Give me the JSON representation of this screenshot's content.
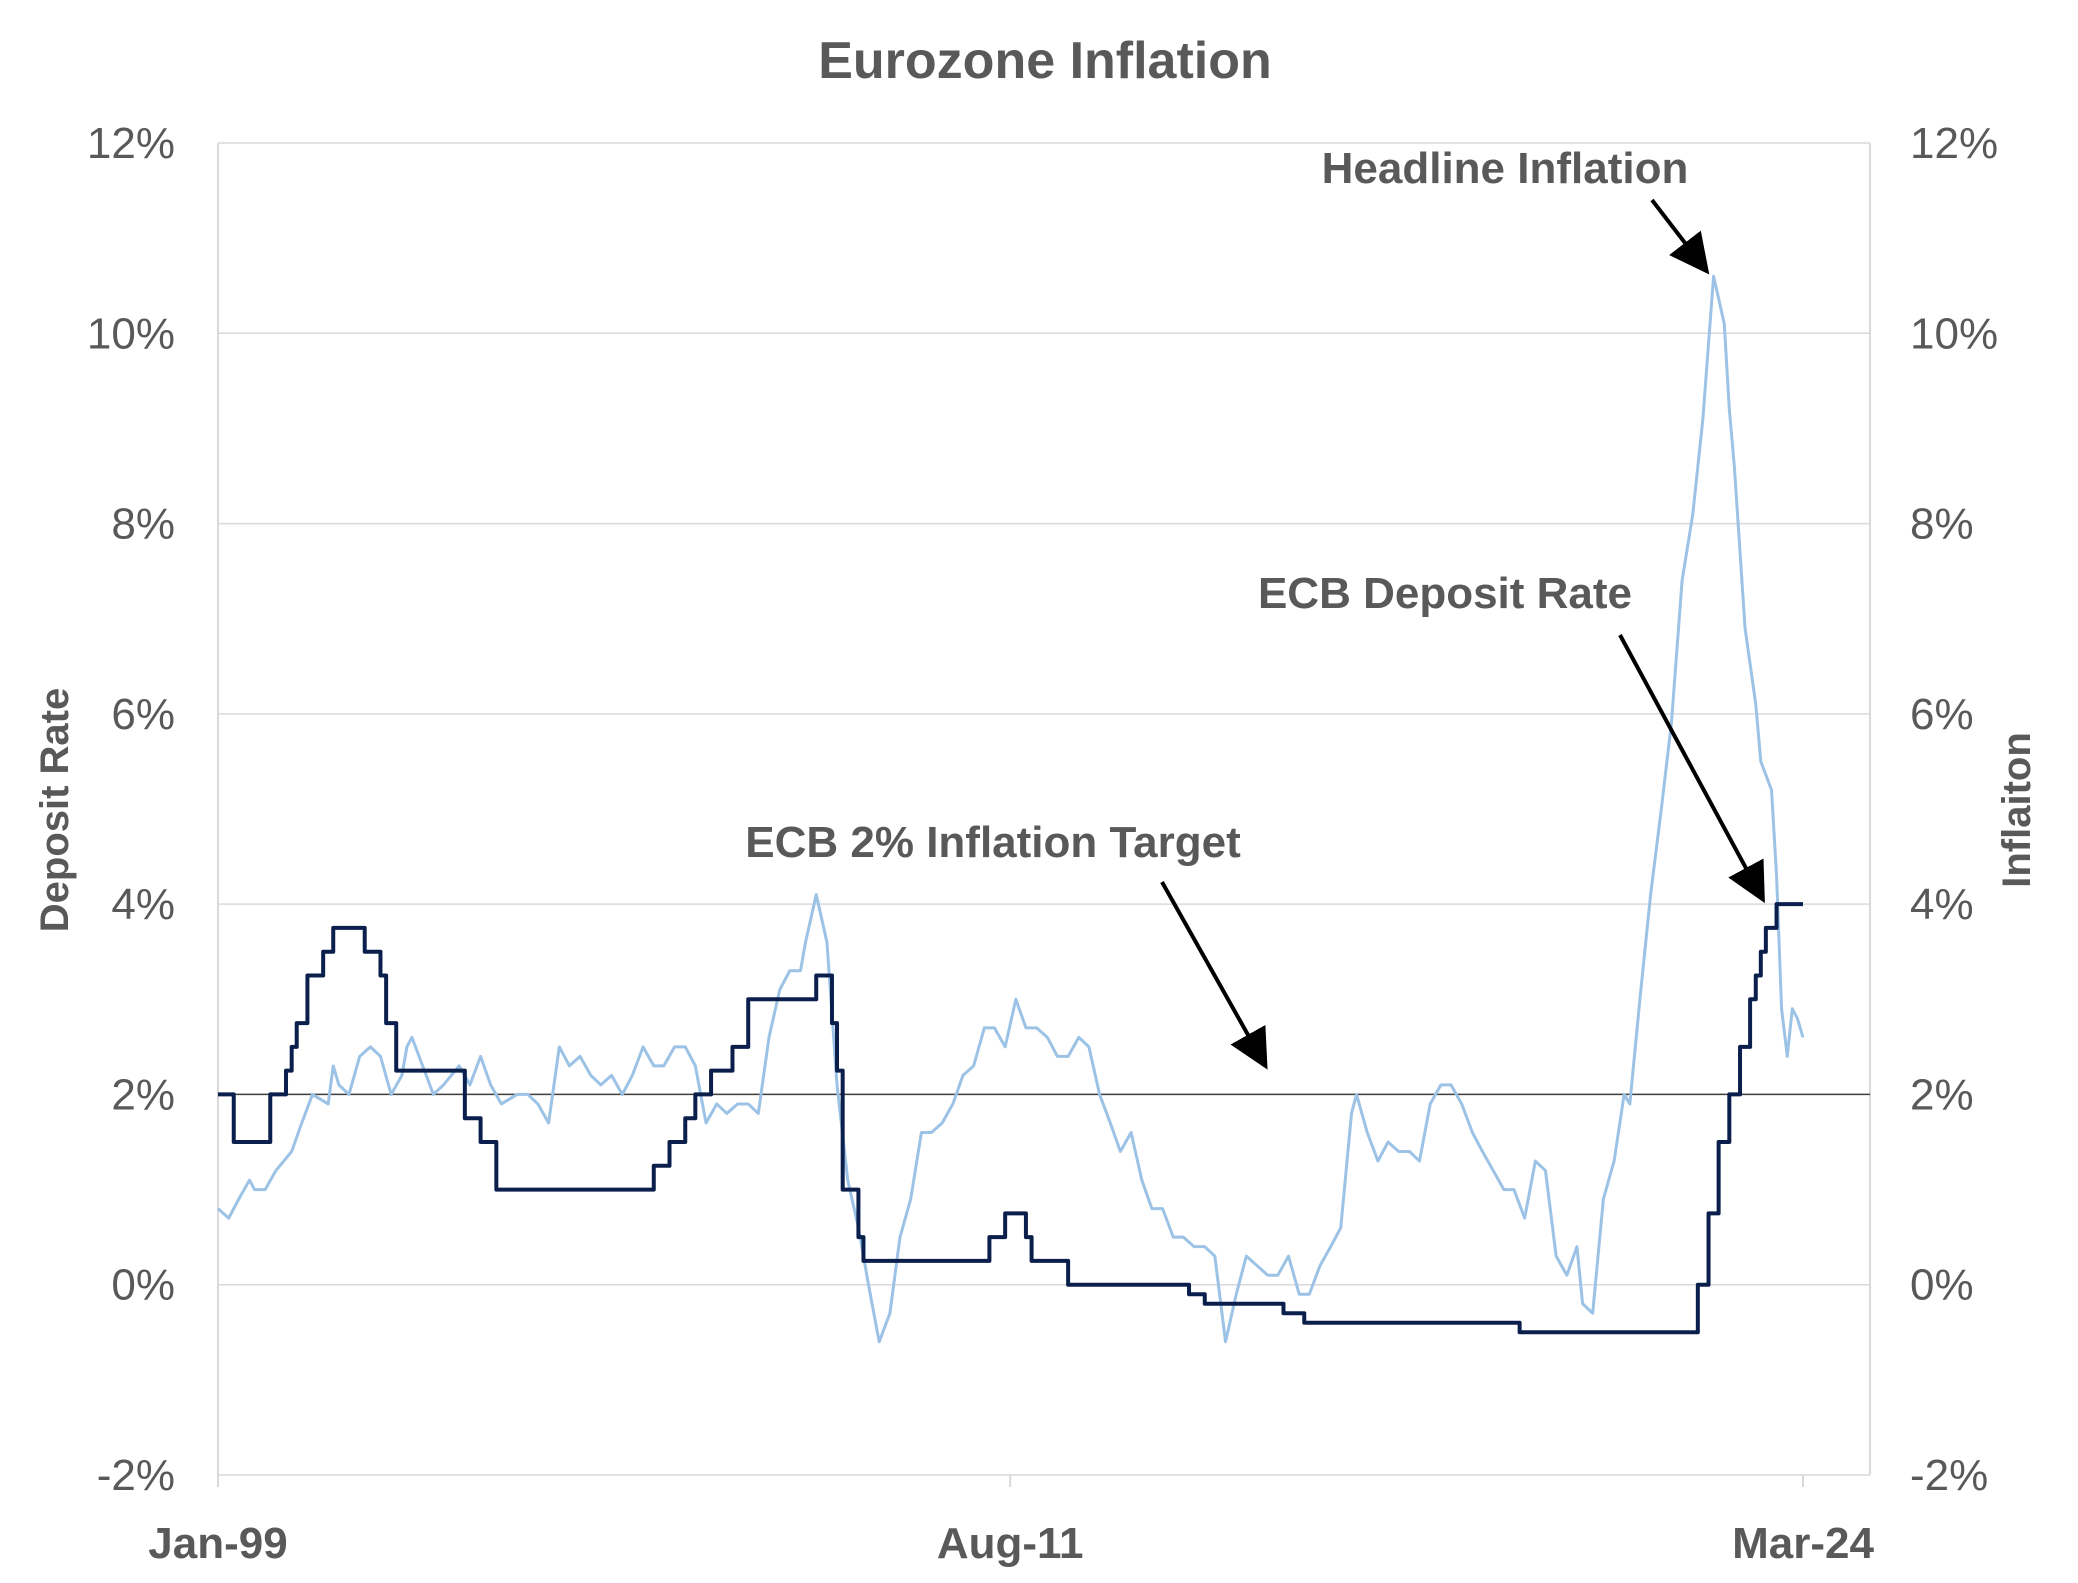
{
  "chart_data": {
    "type": "line",
    "title": "Eurozone Inflation",
    "ylabel": "Deposit  Rate",
    "y2label": "Inflaiton",
    "ylim": [
      -2,
      12
    ],
    "y2lim": [
      -2,
      12
    ],
    "yticks": [
      "-2%",
      "0%",
      "2%",
      "4%",
      "6%",
      "8%",
      "10%",
      "12%"
    ],
    "ytick_values": [
      -2,
      0,
      2,
      4,
      6,
      8,
      10,
      12
    ],
    "xlim": [
      1999.0,
      2024.0
    ],
    "xticks": [
      "Jan-99",
      "Aug-11",
      "Mar-24"
    ],
    "xtick_values": [
      1999.0,
      2011.58,
      2024.17
    ],
    "target_line": {
      "value": 2,
      "label": "ECB 2% Inflation Target"
    },
    "colors": {
      "deposit": "#0b1f4d",
      "inflation": "#9cc2e5",
      "target": "#404040",
      "grid": "#d9d9d9",
      "text": "#595959",
      "arrow": "#000000"
    },
    "annotations": [
      {
        "text": "Headline Inflation",
        "target": {
          "x": 2022.7,
          "y": 10.6
        }
      },
      {
        "text": "ECB Deposit Rate",
        "target": {
          "x": 2023.6,
          "y": 4.0
        }
      },
      {
        "text": "ECB 2% Inflation Target",
        "target": {
          "x": 2015.7,
          "y": 2.25
        }
      }
    ],
    "series": [
      {
        "name": "ECB Deposit Rate",
        "step": true,
        "points": [
          [
            1999.0,
            2.0
          ],
          [
            1999.25,
            1.5
          ],
          [
            1999.83,
            2.0
          ],
          [
            2000.08,
            2.25
          ],
          [
            2000.17,
            2.5
          ],
          [
            2000.25,
            2.75
          ],
          [
            2000.42,
            3.25
          ],
          [
            2000.67,
            3.5
          ],
          [
            2000.83,
            3.75
          ],
          [
            2001.33,
            3.5
          ],
          [
            2001.58,
            3.25
          ],
          [
            2001.67,
            2.75
          ],
          [
            2001.83,
            2.25
          ],
          [
            2002.92,
            1.75
          ],
          [
            2003.17,
            1.5
          ],
          [
            2003.42,
            1.0
          ],
          [
            2005.92,
            1.25
          ],
          [
            2006.17,
            1.5
          ],
          [
            2006.42,
            1.75
          ],
          [
            2006.58,
            2.0
          ],
          [
            2006.83,
            2.25
          ],
          [
            2007.17,
            2.5
          ],
          [
            2007.42,
            3.0
          ],
          [
            2008.5,
            3.25
          ],
          [
            2008.75,
            2.75
          ],
          [
            2008.83,
            2.25
          ],
          [
            2008.92,
            1.0
          ],
          [
            2009.0,
            1.0
          ],
          [
            2009.17,
            0.5
          ],
          [
            2009.25,
            0.25
          ],
          [
            2011.25,
            0.5
          ],
          [
            2011.5,
            0.75
          ],
          [
            2011.83,
            0.5
          ],
          [
            2011.92,
            0.25
          ],
          [
            2012.5,
            0.0
          ],
          [
            2014.42,
            -0.1
          ],
          [
            2014.67,
            -0.2
          ],
          [
            2015.92,
            -0.3
          ],
          [
            2016.25,
            -0.4
          ],
          [
            2019.67,
            -0.5
          ],
          [
            2022.5,
            0.0
          ],
          [
            2022.67,
            0.75
          ],
          [
            2022.83,
            1.5
          ],
          [
            2023.0,
            2.0
          ],
          [
            2023.17,
            2.5
          ],
          [
            2023.33,
            3.0
          ],
          [
            2023.42,
            3.25
          ],
          [
            2023.5,
            3.5
          ],
          [
            2023.58,
            3.75
          ],
          [
            2023.75,
            4.0
          ],
          [
            2024.17,
            4.0
          ]
        ]
      },
      {
        "name": "Headline Inflation",
        "step": false,
        "points": [
          [
            1999.0,
            0.8
          ],
          [
            1999.17,
            0.7
          ],
          [
            1999.33,
            0.9
          ],
          [
            1999.5,
            1.1
          ],
          [
            1999.58,
            1.0
          ],
          [
            1999.75,
            1.0
          ],
          [
            1999.92,
            1.2
          ],
          [
            2000.17,
            1.4
          ],
          [
            2000.33,
            1.7
          ],
          [
            2000.5,
            2.0
          ],
          [
            2000.75,
            1.9
          ],
          [
            2000.83,
            2.3
          ],
          [
            2000.92,
            2.1
          ],
          [
            2001.08,
            2.0
          ],
          [
            2001.25,
            2.4
          ],
          [
            2001.42,
            2.5
          ],
          [
            2001.58,
            2.4
          ],
          [
            2001.75,
            2.0
          ],
          [
            2001.92,
            2.2
          ],
          [
            2002.0,
            2.5
          ],
          [
            2002.08,
            2.6
          ],
          [
            2002.25,
            2.3
          ],
          [
            2002.42,
            2.0
          ],
          [
            2002.58,
            2.1
          ],
          [
            2002.83,
            2.3
          ],
          [
            2003.0,
            2.1
          ],
          [
            2003.17,
            2.4
          ],
          [
            2003.33,
            2.1
          ],
          [
            2003.5,
            1.9
          ],
          [
            2003.75,
            2.0
          ],
          [
            2003.92,
            2.0
          ],
          [
            2004.08,
            1.9
          ],
          [
            2004.25,
            1.7
          ],
          [
            2004.42,
            2.5
          ],
          [
            2004.58,
            2.3
          ],
          [
            2004.75,
            2.4
          ],
          [
            2004.92,
            2.2
          ],
          [
            2005.08,
            2.1
          ],
          [
            2005.25,
            2.2
          ],
          [
            2005.42,
            2.0
          ],
          [
            2005.58,
            2.2
          ],
          [
            2005.75,
            2.5
          ],
          [
            2005.92,
            2.3
          ],
          [
            2006.08,
            2.3
          ],
          [
            2006.25,
            2.5
          ],
          [
            2006.42,
            2.5
          ],
          [
            2006.58,
            2.3
          ],
          [
            2006.75,
            1.7
          ],
          [
            2006.92,
            1.9
          ],
          [
            2007.08,
            1.8
          ],
          [
            2007.25,
            1.9
          ],
          [
            2007.42,
            1.9
          ],
          [
            2007.58,
            1.8
          ],
          [
            2007.75,
            2.6
          ],
          [
            2007.92,
            3.1
          ],
          [
            2008.08,
            3.3
          ],
          [
            2008.25,
            3.3
          ],
          [
            2008.33,
            3.6
          ],
          [
            2008.5,
            4.1
          ],
          [
            2008.67,
            3.6
          ],
          [
            2008.83,
            2.1
          ],
          [
            2009.0,
            1.1
          ],
          [
            2009.17,
            0.6
          ],
          [
            2009.33,
            0.0
          ],
          [
            2009.5,
            -0.6
          ],
          [
            2009.67,
            -0.3
          ],
          [
            2009.83,
            0.5
          ],
          [
            2010.0,
            0.9
          ],
          [
            2010.17,
            1.6
          ],
          [
            2010.33,
            1.6
          ],
          [
            2010.5,
            1.7
          ],
          [
            2010.67,
            1.9
          ],
          [
            2010.83,
            2.2
          ],
          [
            2011.0,
            2.3
          ],
          [
            2011.17,
            2.7
          ],
          [
            2011.33,
            2.7
          ],
          [
            2011.5,
            2.5
          ],
          [
            2011.67,
            3.0
          ],
          [
            2011.83,
            2.7
          ],
          [
            2012.0,
            2.7
          ],
          [
            2012.17,
            2.6
          ],
          [
            2012.33,
            2.4
          ],
          [
            2012.5,
            2.4
          ],
          [
            2012.67,
            2.6
          ],
          [
            2012.83,
            2.5
          ],
          [
            2013.0,
            2.0
          ],
          [
            2013.17,
            1.7
          ],
          [
            2013.33,
            1.4
          ],
          [
            2013.5,
            1.6
          ],
          [
            2013.67,
            1.1
          ],
          [
            2013.83,
            0.8
          ],
          [
            2014.0,
            0.8
          ],
          [
            2014.17,
            0.5
          ],
          [
            2014.33,
            0.5
          ],
          [
            2014.5,
            0.4
          ],
          [
            2014.67,
            0.4
          ],
          [
            2014.83,
            0.3
          ],
          [
            2015.0,
            -0.6
          ],
          [
            2015.17,
            -0.1
          ],
          [
            2015.33,
            0.3
          ],
          [
            2015.5,
            0.2
          ],
          [
            2015.67,
            0.1
          ],
          [
            2015.83,
            0.1
          ],
          [
            2016.0,
            0.3
          ],
          [
            2016.17,
            -0.1
          ],
          [
            2016.33,
            -0.1
          ],
          [
            2016.5,
            0.2
          ],
          [
            2016.67,
            0.4
          ],
          [
            2016.83,
            0.6
          ],
          [
            2017.0,
            1.8
          ],
          [
            2017.08,
            2.0
          ],
          [
            2017.25,
            1.6
          ],
          [
            2017.42,
            1.3
          ],
          [
            2017.58,
            1.5
          ],
          [
            2017.75,
            1.4
          ],
          [
            2017.92,
            1.4
          ],
          [
            2018.08,
            1.3
          ],
          [
            2018.25,
            1.9
          ],
          [
            2018.42,
            2.1
          ],
          [
            2018.58,
            2.1
          ],
          [
            2018.75,
            1.9
          ],
          [
            2018.92,
            1.6
          ],
          [
            2019.08,
            1.4
          ],
          [
            2019.25,
            1.2
          ],
          [
            2019.42,
            1.0
          ],
          [
            2019.58,
            1.0
          ],
          [
            2019.75,
            0.7
          ],
          [
            2019.92,
            1.3
          ],
          [
            2020.08,
            1.2
          ],
          [
            2020.25,
            0.3
          ],
          [
            2020.42,
            0.1
          ],
          [
            2020.58,
            0.4
          ],
          [
            2020.67,
            -0.2
          ],
          [
            2020.83,
            -0.3
          ],
          [
            2021.0,
            0.9
          ],
          [
            2021.17,
            1.3
          ],
          [
            2021.33,
            2.0
          ],
          [
            2021.42,
            1.9
          ],
          [
            2021.58,
            3.0
          ],
          [
            2021.75,
            4.1
          ],
          [
            2021.92,
            5.0
          ],
          [
            2022.08,
            5.9
          ],
          [
            2022.25,
            7.4
          ],
          [
            2022.42,
            8.1
          ],
          [
            2022.58,
            9.1
          ],
          [
            2022.75,
            10.6
          ],
          [
            2022.92,
            10.1
          ],
          [
            2023.0,
            9.2
          ],
          [
            2023.08,
            8.6
          ],
          [
            2023.25,
            6.9
          ],
          [
            2023.42,
            6.1
          ],
          [
            2023.5,
            5.5
          ],
          [
            2023.67,
            5.2
          ],
          [
            2023.75,
            4.3
          ],
          [
            2023.83,
            2.9
          ],
          [
            2023.92,
            2.4
          ],
          [
            2024.0,
            2.9
          ],
          [
            2024.08,
            2.8
          ],
          [
            2024.17,
            2.6
          ]
        ]
      }
    ]
  }
}
